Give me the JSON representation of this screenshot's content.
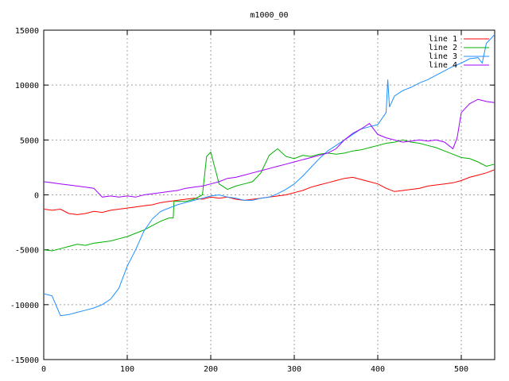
{
  "chart_data": {
    "type": "line",
    "title": "m1000_00",
    "xlabel": "",
    "ylabel": "",
    "xlim": [
      0,
      540
    ],
    "ylim": [
      -15000,
      15000
    ],
    "xticks": [
      0,
      100,
      200,
      300,
      400,
      500
    ],
    "yticks": [
      -15000,
      -10000,
      -5000,
      0,
      5000,
      10000,
      15000
    ],
    "grid": true,
    "legend_position": "top-right",
    "series": [
      {
        "name": "line 1",
        "color": "#ff0000",
        "points": [
          [
            0,
            -1300
          ],
          [
            10,
            -1400
          ],
          [
            20,
            -1300
          ],
          [
            30,
            -1700
          ],
          [
            40,
            -1800
          ],
          [
            50,
            -1700
          ],
          [
            60,
            -1500
          ],
          [
            70,
            -1600
          ],
          [
            80,
            -1400
          ],
          [
            90,
            -1300
          ],
          [
            100,
            -1200
          ],
          [
            110,
            -1100
          ],
          [
            120,
            -1000
          ],
          [
            130,
            -900
          ],
          [
            140,
            -700
          ],
          [
            150,
            -600
          ],
          [
            160,
            -500
          ],
          [
            170,
            -400
          ],
          [
            180,
            -300
          ],
          [
            190,
            -400
          ],
          [
            200,
            -200
          ],
          [
            210,
            -300
          ],
          [
            220,
            -200
          ],
          [
            230,
            -400
          ],
          [
            240,
            -500
          ],
          [
            250,
            -400
          ],
          [
            260,
            -300
          ],
          [
            270,
            -200
          ],
          [
            280,
            -100
          ],
          [
            290,
            0
          ],
          [
            300,
            200
          ],
          [
            310,
            400
          ],
          [
            320,
            700
          ],
          [
            330,
            900
          ],
          [
            340,
            1100
          ],
          [
            350,
            1300
          ],
          [
            360,
            1500
          ],
          [
            370,
            1600
          ],
          [
            380,
            1400
          ],
          [
            390,
            1200
          ],
          [
            400,
            1000
          ],
          [
            410,
            600
          ],
          [
            420,
            300
          ],
          [
            430,
            400
          ],
          [
            440,
            500
          ],
          [
            450,
            600
          ],
          [
            460,
            800
          ],
          [
            470,
            900
          ],
          [
            480,
            1000
          ],
          [
            490,
            1100
          ],
          [
            500,
            1300
          ],
          [
            510,
            1600
          ],
          [
            520,
            1800
          ],
          [
            530,
            2000
          ],
          [
            540,
            2300
          ]
        ]
      },
      {
        "name": "line 2",
        "color": "#00b000",
        "points": [
          [
            0,
            -5000
          ],
          [
            10,
            -5100
          ],
          [
            20,
            -4900
          ],
          [
            30,
            -4700
          ],
          [
            40,
            -4500
          ],
          [
            50,
            -4600
          ],
          [
            60,
            -4400
          ],
          [
            70,
            -4300
          ],
          [
            80,
            -4200
          ],
          [
            90,
            -4000
          ],
          [
            100,
            -3800
          ],
          [
            110,
            -3500
          ],
          [
            120,
            -3200
          ],
          [
            130,
            -2800
          ],
          [
            140,
            -2400
          ],
          [
            150,
            -2100
          ],
          [
            155,
            -2100
          ],
          [
            156,
            -600
          ],
          [
            170,
            -600
          ],
          [
            180,
            -400
          ],
          [
            190,
            0
          ],
          [
            195,
            3500
          ],
          [
            200,
            3900
          ],
          [
            210,
            1000
          ],
          [
            220,
            500
          ],
          [
            230,
            800
          ],
          [
            240,
            1000
          ],
          [
            250,
            1200
          ],
          [
            260,
            2000
          ],
          [
            270,
            3600
          ],
          [
            280,
            4200
          ],
          [
            290,
            3500
          ],
          [
            300,
            3300
          ],
          [
            310,
            3600
          ],
          [
            320,
            3500
          ],
          [
            330,
            3700
          ],
          [
            340,
            3800
          ],
          [
            350,
            3700
          ],
          [
            360,
            3800
          ],
          [
            370,
            4000
          ],
          [
            380,
            4100
          ],
          [
            390,
            4300
          ],
          [
            400,
            4500
          ],
          [
            410,
            4700
          ],
          [
            420,
            4800
          ],
          [
            430,
            5000
          ],
          [
            440,
            4800
          ],
          [
            450,
            4700
          ],
          [
            460,
            4500
          ],
          [
            470,
            4300
          ],
          [
            480,
            4000
          ],
          [
            490,
            3700
          ],
          [
            500,
            3400
          ],
          [
            510,
            3300
          ],
          [
            520,
            3000
          ],
          [
            530,
            2600
          ],
          [
            540,
            2800
          ]
        ]
      },
      {
        "name": "line 3",
        "color": "#1e90ff",
        "points": [
          [
            0,
            -9000
          ],
          [
            10,
            -9200
          ],
          [
            20,
            -11000
          ],
          [
            30,
            -10900
          ],
          [
            40,
            -10700
          ],
          [
            50,
            -10500
          ],
          [
            60,
            -10300
          ],
          [
            70,
            -10000
          ],
          [
            80,
            -9500
          ],
          [
            90,
            -8500
          ],
          [
            100,
            -6500
          ],
          [
            110,
            -5000
          ],
          [
            120,
            -3300
          ],
          [
            130,
            -2200
          ],
          [
            140,
            -1500
          ],
          [
            150,
            -1200
          ],
          [
            160,
            -900
          ],
          [
            170,
            -700
          ],
          [
            180,
            -500
          ],
          [
            190,
            -300
          ],
          [
            200,
            -100
          ],
          [
            210,
            0
          ],
          [
            220,
            -200
          ],
          [
            230,
            -300
          ],
          [
            240,
            -500
          ],
          [
            250,
            -500
          ],
          [
            260,
            -300
          ],
          [
            270,
            -200
          ],
          [
            280,
            100
          ],
          [
            290,
            500
          ],
          [
            300,
            1000
          ],
          [
            310,
            1700
          ],
          [
            320,
            2500
          ],
          [
            330,
            3300
          ],
          [
            340,
            4000
          ],
          [
            350,
            4500
          ],
          [
            360,
            5000
          ],
          [
            370,
            5500
          ],
          [
            380,
            6000
          ],
          [
            390,
            6200
          ],
          [
            400,
            6400
          ],
          [
            410,
            7500
          ],
          [
            412,
            10500
          ],
          [
            414,
            8000
          ],
          [
            420,
            9000
          ],
          [
            430,
            9500
          ],
          [
            440,
            9800
          ],
          [
            450,
            10200
          ],
          [
            460,
            10500
          ],
          [
            470,
            10900
          ],
          [
            480,
            11300
          ],
          [
            490,
            11700
          ],
          [
            500,
            12000
          ],
          [
            510,
            12400
          ],
          [
            520,
            12500
          ],
          [
            525,
            12000
          ],
          [
            530,
            13800
          ],
          [
            540,
            14600
          ]
        ]
      },
      {
        "name": "line 4",
        "color": "#a000ff",
        "points": [
          [
            0,
            1200
          ],
          [
            10,
            1100
          ],
          [
            20,
            1000
          ],
          [
            30,
            900
          ],
          [
            40,
            800
          ],
          [
            50,
            700
          ],
          [
            60,
            600
          ],
          [
            70,
            -200
          ],
          [
            80,
            -100
          ],
          [
            90,
            -200
          ],
          [
            100,
            -100
          ],
          [
            110,
            -200
          ],
          [
            120,
            0
          ],
          [
            130,
            100
          ],
          [
            140,
            200
          ],
          [
            150,
            300
          ],
          [
            160,
            400
          ],
          [
            170,
            600
          ],
          [
            180,
            700
          ],
          [
            190,
            800
          ],
          [
            200,
            1000
          ],
          [
            210,
            1200
          ],
          [
            220,
            1500
          ],
          [
            230,
            1600
          ],
          [
            240,
            1800
          ],
          [
            250,
            2000
          ],
          [
            260,
            2200
          ],
          [
            270,
            2400
          ],
          [
            280,
            2600
          ],
          [
            290,
            2800
          ],
          [
            300,
            3000
          ],
          [
            310,
            3200
          ],
          [
            320,
            3400
          ],
          [
            330,
            3600
          ],
          [
            340,
            3800
          ],
          [
            350,
            4200
          ],
          [
            360,
            5000
          ],
          [
            370,
            5600
          ],
          [
            380,
            6000
          ],
          [
            390,
            6500
          ],
          [
            400,
            5500
          ],
          [
            410,
            5200
          ],
          [
            420,
            5000
          ],
          [
            430,
            4800
          ],
          [
            440,
            4900
          ],
          [
            450,
            5000
          ],
          [
            460,
            4900
          ],
          [
            470,
            5000
          ],
          [
            480,
            4800
          ],
          [
            490,
            4200
          ],
          [
            495,
            5200
          ],
          [
            500,
            7500
          ],
          [
            510,
            8300
          ],
          [
            520,
            8700
          ],
          [
            530,
            8500
          ],
          [
            540,
            8400
          ]
        ]
      }
    ]
  }
}
